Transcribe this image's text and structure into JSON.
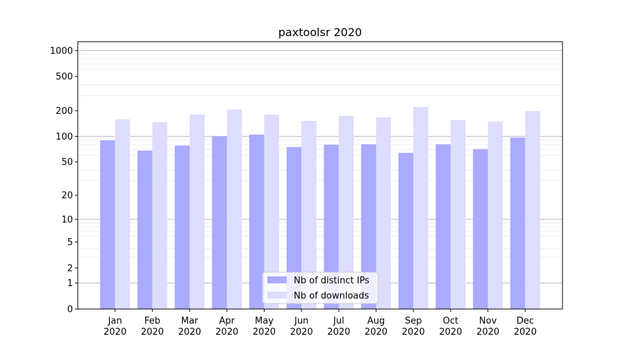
{
  "chart_data": {
    "type": "bar",
    "title": "paxtoolsr 2020",
    "xlabel": "",
    "ylabel": "",
    "yscale": "symlog (log10(1+y))",
    "ylim": [
      0,
      1270
    ],
    "yticks": [
      0,
      1,
      2,
      5,
      10,
      20,
      50,
      100,
      200,
      500,
      1000
    ],
    "grid": true,
    "legend_position": "bottom-center",
    "categories": [
      "Jan\n2020",
      "Feb\n2020",
      "Mar\n2020",
      "Apr\n2020",
      "May\n2020",
      "Jun\n2020",
      "Jul\n2020",
      "Aug\n2020",
      "Sep\n2020",
      "Oct\n2020",
      "Nov\n2020",
      "Dec\n2020"
    ],
    "series": [
      {
        "name": "Nb of distinct IPs",
        "color": "#aaaaff",
        "values": [
          90,
          68,
          78,
          100,
          105,
          75,
          80,
          81,
          64,
          81,
          71,
          97
        ]
      },
      {
        "name": "Nb of downloads",
        "color": "#ddddff",
        "values": [
          158,
          147,
          180,
          206,
          180,
          152,
          174,
          167,
          221,
          155,
          149,
          198
        ]
      }
    ]
  }
}
